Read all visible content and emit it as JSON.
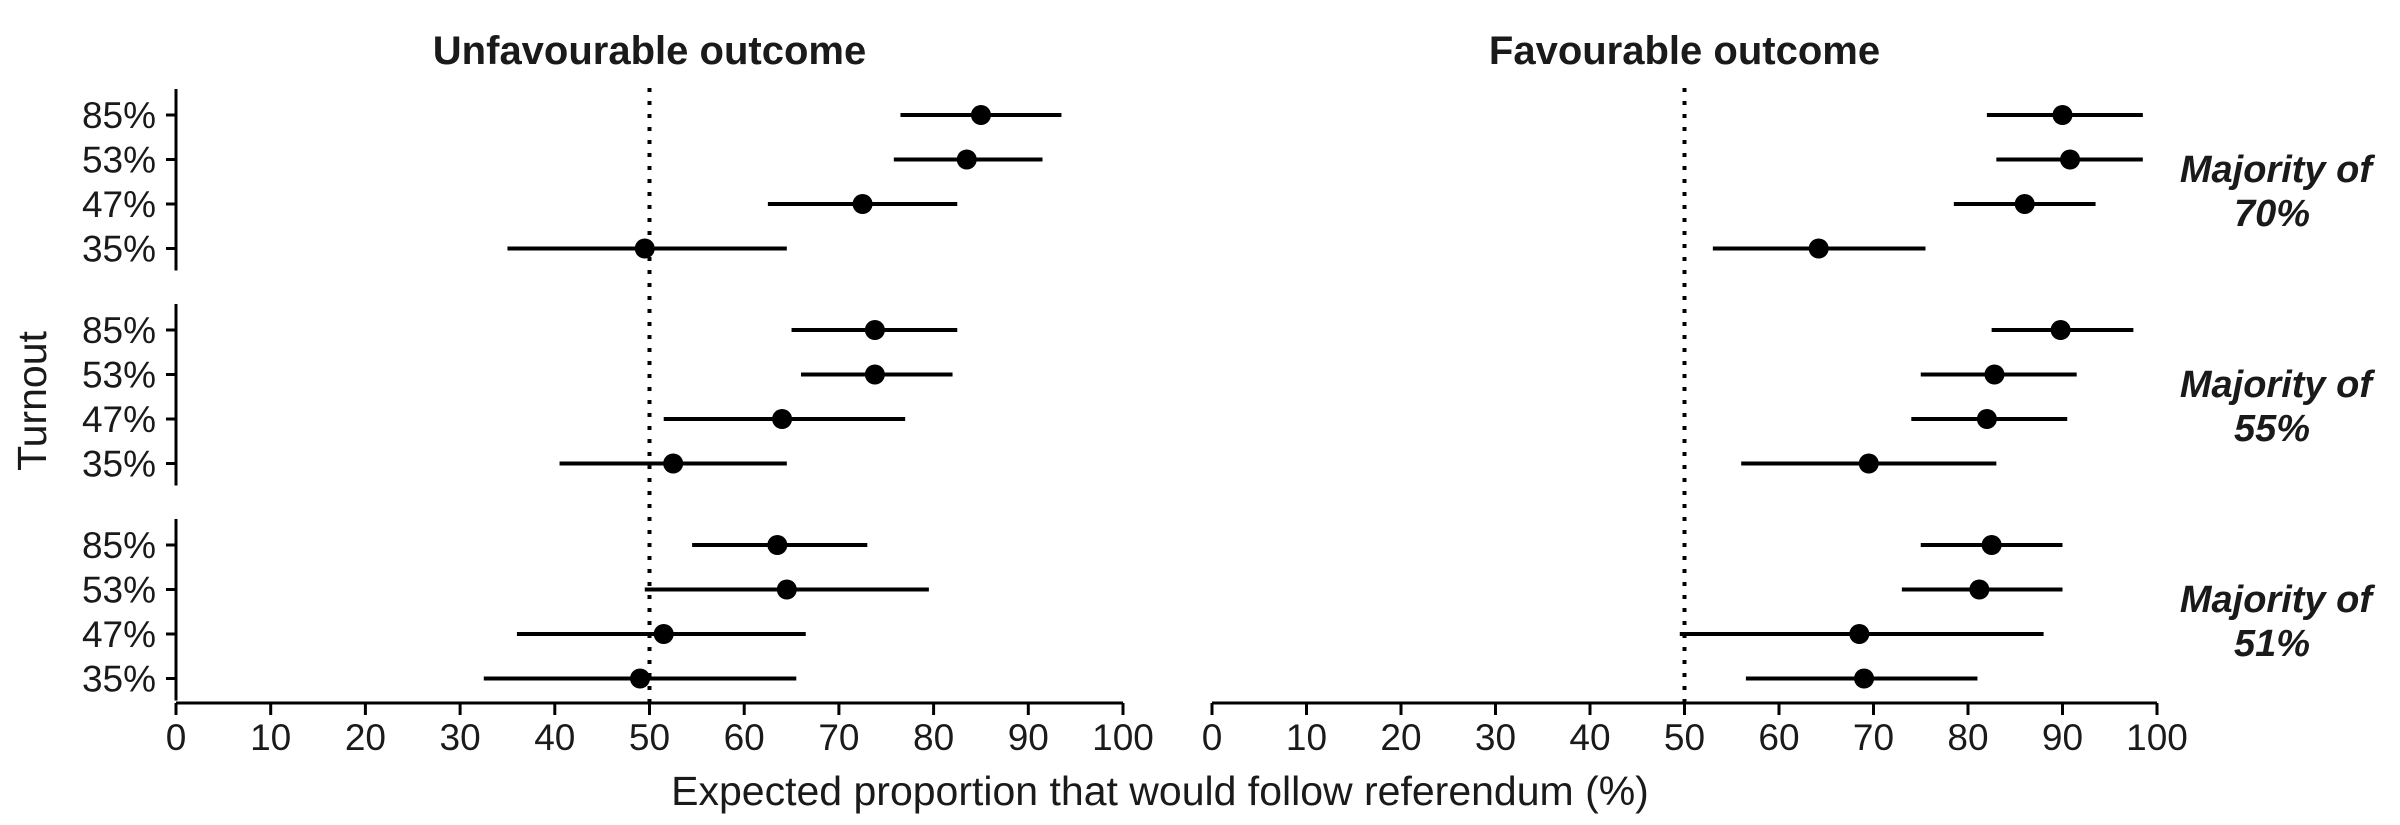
{
  "chart_data": {
    "type": "scatter",
    "style": "dot-and-whisker",
    "xlabel": "Expected proportion that would follow referendum (%)",
    "ylabel": "Turnout",
    "xlim": [
      0,
      100
    ],
    "xticks": [
      0,
      10,
      20,
      30,
      40,
      50,
      60,
      70,
      80,
      90,
      100
    ],
    "reference_line": 50,
    "turnout_levels": [
      "85%",
      "53%",
      "47%",
      "35%"
    ],
    "columns": [
      "Unfavourable outcome",
      "Favourable outcome"
    ],
    "rows": [
      {
        "label_line1": "Majority of",
        "label_line2": "70%"
      },
      {
        "label_line1": "Majority of",
        "label_line2": "55%"
      },
      {
        "label_line1": "Majority of",
        "label_line2": "51%"
      }
    ],
    "panels": [
      {
        "column": 0,
        "row": 0,
        "points": [
          {
            "turnout": "85%",
            "estimate": 85.0,
            "lower": 76.5,
            "upper": 93.5
          },
          {
            "turnout": "53%",
            "estimate": 83.5,
            "lower": 75.8,
            "upper": 91.5
          },
          {
            "turnout": "47%",
            "estimate": 72.5,
            "lower": 62.5,
            "upper": 82.5
          },
          {
            "turnout": "35%",
            "estimate": 49.5,
            "lower": 35.0,
            "upper": 64.5
          }
        ]
      },
      {
        "column": 0,
        "row": 1,
        "points": [
          {
            "turnout": "85%",
            "estimate": 73.8,
            "lower": 65.0,
            "upper": 82.5
          },
          {
            "turnout": "53%",
            "estimate": 73.8,
            "lower": 66.0,
            "upper": 82.0
          },
          {
            "turnout": "47%",
            "estimate": 64.0,
            "lower": 51.5,
            "upper": 77.0
          },
          {
            "turnout": "35%",
            "estimate": 52.5,
            "lower": 40.5,
            "upper": 64.5
          }
        ]
      },
      {
        "column": 0,
        "row": 2,
        "points": [
          {
            "turnout": "85%",
            "estimate": 63.5,
            "lower": 54.5,
            "upper": 73.0
          },
          {
            "turnout": "53%",
            "estimate": 64.5,
            "lower": 49.5,
            "upper": 79.5
          },
          {
            "turnout": "47%",
            "estimate": 51.5,
            "lower": 36.0,
            "upper": 66.5
          },
          {
            "turnout": "35%",
            "estimate": 49.0,
            "lower": 32.5,
            "upper": 65.5
          }
        ]
      },
      {
        "column": 1,
        "row": 0,
        "points": [
          {
            "turnout": "85%",
            "estimate": 90.0,
            "lower": 82.0,
            "upper": 98.5
          },
          {
            "turnout": "53%",
            "estimate": 90.8,
            "lower": 83.0,
            "upper": 98.5
          },
          {
            "turnout": "47%",
            "estimate": 86.0,
            "lower": 78.5,
            "upper": 93.5
          },
          {
            "turnout": "35%",
            "estimate": 64.2,
            "lower": 53.0,
            "upper": 75.5
          }
        ]
      },
      {
        "column": 1,
        "row": 1,
        "points": [
          {
            "turnout": "85%",
            "estimate": 89.8,
            "lower": 82.5,
            "upper": 97.5
          },
          {
            "turnout": "53%",
            "estimate": 82.8,
            "lower": 75.0,
            "upper": 91.5
          },
          {
            "turnout": "47%",
            "estimate": 82.0,
            "lower": 74.0,
            "upper": 90.5
          },
          {
            "turnout": "35%",
            "estimate": 69.5,
            "lower": 56.0,
            "upper": 83.0
          }
        ]
      },
      {
        "column": 1,
        "row": 2,
        "points": [
          {
            "turnout": "85%",
            "estimate": 82.5,
            "lower": 75.0,
            "upper": 90.0
          },
          {
            "turnout": "53%",
            "estimate": 81.2,
            "lower": 73.0,
            "upper": 90.0
          },
          {
            "turnout": "47%",
            "estimate": 68.5,
            "lower": 49.5,
            "upper": 88.0
          },
          {
            "turnout": "35%",
            "estimate": 69.0,
            "lower": 56.5,
            "upper": 81.0
          }
        ]
      }
    ],
    "colors": {
      "ink": "#000000",
      "text": "#1a1a1a",
      "background": "#ffffff"
    }
  }
}
